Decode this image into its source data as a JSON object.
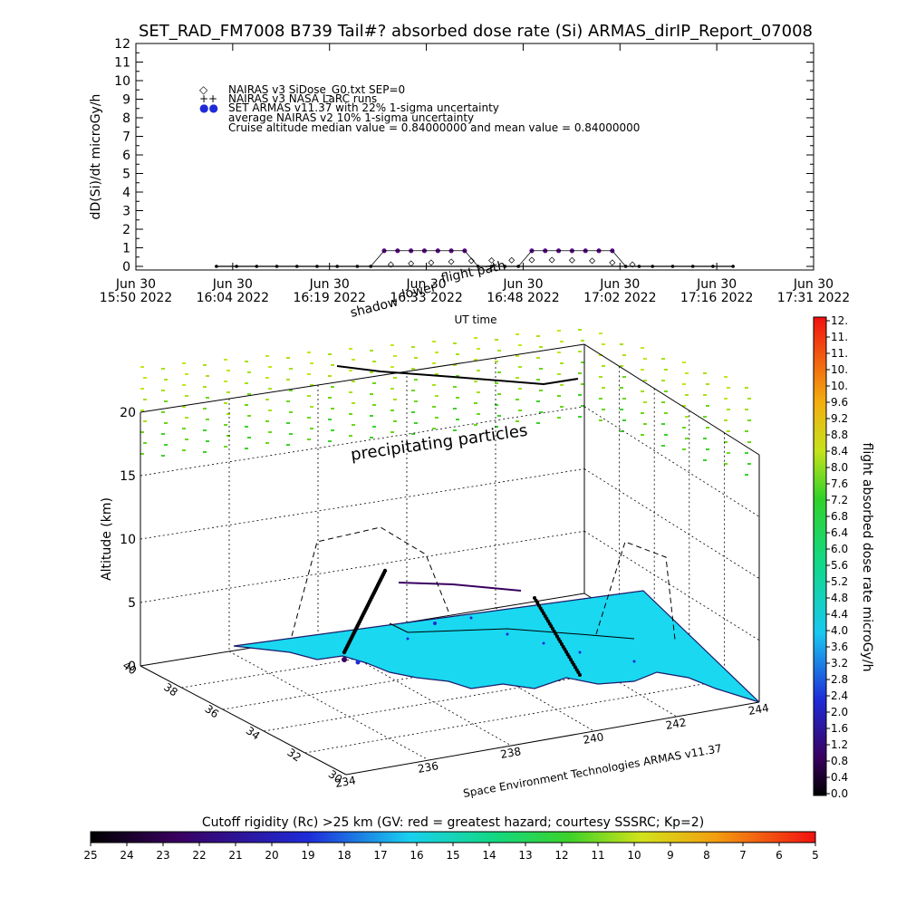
{
  "top_chart": {
    "title": "SET_RAD_FM7008  B739 Tail#? absorbed dose rate (Si) ARMAS_dirIP_Report_07008",
    "ylabel": "dD(Si)/dt microGy/h",
    "xlabel": "UT time",
    "y_ticks": [
      "0",
      "1",
      "2",
      "3",
      "4",
      "5",
      "6",
      "7",
      "8",
      "9",
      "10",
      "11",
      "12"
    ],
    "x_ticks": [
      {
        "line1": "Jun 30",
        "line2": "15:50 2022"
      },
      {
        "line1": "Jun 30",
        "line2": "16:04 2022"
      },
      {
        "line1": "Jun 30",
        "line2": "16:19 2022"
      },
      {
        "line1": "Jun 30",
        "line2": "16:33 2022"
      },
      {
        "line1": "Jun 30",
        "line2": "16:48 2022"
      },
      {
        "line1": "Jun 30",
        "line2": "17:02 2022"
      },
      {
        "line1": "Jun 30",
        "line2": "17:16 2022"
      },
      {
        "line1": "Jun 30",
        "line2": "17:31 2022"
      }
    ],
    "legend": [
      {
        "symbol": "◇",
        "text": "NAIRAS v3 SiDose_G0.txt SEP=0"
      },
      {
        "symbol": "++",
        "text": "NAIRAS v3 NASA LaRC runs"
      },
      {
        "symbol": "●●",
        "text": "SET ARMAS v11.37 with 22% 1-sigma uncertainty"
      },
      {
        "symbol": "",
        "text": "average NAIRAS v2 10% 1-sigma uncertainty"
      },
      {
        "symbol": "",
        "text": "Cruise altitude median value = 0.84000000 and mean value = 0.84000000"
      }
    ],
    "overlay_lower": "lower",
    "overlay_flightpath": "flight path",
    "overlay_shadow": "shadow",
    "colors": {
      "armas": "#5a0a8a",
      "nairas": "#000000"
    }
  },
  "chart_data": [
    {
      "type": "scatter",
      "title": "SET_RAD_FM7008  B739 Tail#? absorbed dose rate (Si) ARMAS_dirIP_Report_07008",
      "xlabel": "UT time",
      "ylabel": "dD(Si)/dt microGy/h",
      "xlim": [
        "15:50",
        "17:31"
      ],
      "ylim": [
        0,
        12
      ],
      "series": [
        {
          "name": "SET ARMAS v11.37 with 22% 1-sigma uncertainty",
          "x": [
            "16:02",
            "16:05",
            "16:08",
            "16:11",
            "16:14",
            "16:17",
            "16:20",
            "16:23",
            "16:25",
            "16:27",
            "16:29",
            "16:31",
            "16:33",
            "16:35",
            "16:37",
            "16:39",
            "16:41",
            "16:43",
            "16:45",
            "16:47",
            "16:49",
            "16:51",
            "16:53",
            "16:55",
            "16:57",
            "16:59",
            "17:01",
            "17:03",
            "17:05",
            "17:07",
            "17:10",
            "17:13",
            "17:16",
            "17:19"
          ],
          "y": [
            0,
            0,
            0,
            0,
            0,
            0,
            0,
            0,
            0,
            0.84,
            0.84,
            0.84,
            0.84,
            0.84,
            0.84,
            0.84,
            0,
            0,
            0,
            0,
            0.84,
            0.84,
            0.84,
            0.84,
            0.84,
            0.84,
            0.84,
            0,
            0,
            0,
            0,
            0,
            0,
            0
          ]
        },
        {
          "name": "NAIRAS v3 SiDose_G0.txt SEP=0",
          "x": [
            "16:28",
            "16:31",
            "16:34",
            "16:37",
            "16:40",
            "16:43",
            "16:46",
            "16:49",
            "16:52",
            "16:55",
            "16:58",
            "17:01",
            "17:04"
          ],
          "y": [
            0.1,
            0.15,
            0.2,
            0.25,
            0.3,
            0.32,
            0.33,
            0.34,
            0.34,
            0.33,
            0.3,
            0.2,
            0.1
          ]
        }
      ],
      "annotations": [
        "Cruise altitude median value = 0.84000000 and mean value = 0.84000000"
      ]
    },
    {
      "type": "scatter",
      "title": "",
      "xlabel": "",
      "ylabel": "Altitude (km)",
      "zlim": [
        0,
        20
      ],
      "z_ticks": [
        "0",
        "5",
        "10",
        "15",
        "20"
      ],
      "lat_ticks": [
        "30",
        "32",
        "34",
        "36",
        "38",
        "40"
      ],
      "lon_ticks": [
        "234",
        "236",
        "238",
        "240",
        "242",
        "244"
      ],
      "colorbar": {
        "label": "flight absorbed dose rate microGy/h",
        "ticks": [
          "0.0",
          "0.4",
          "0.8",
          "1.2",
          "1.6",
          "2.0",
          "2.4",
          "2.8",
          "3.2",
          "3.6",
          "4.0",
          "4.4",
          "4.8",
          "5.2",
          "5.6",
          "6.0",
          "6.4",
          "6.8",
          "7.2",
          "7.6",
          "8.0",
          "8.4",
          "8.8",
          "9.2",
          "9.6",
          "10.",
          "10.",
          "11.",
          "11.",
          "12."
        ]
      },
      "annotations": [
        "precipitating particles",
        "Space Environment Technologies ARMAS v11.37"
      ]
    },
    {
      "type": "heatmap",
      "title": "Cutoff rigidity (Rc) >25 km (GV: red = greatest hazard; courtesy SSSRC; Kp=2)",
      "ticks": [
        "25",
        "24",
        "23",
        "22",
        "21",
        "20",
        "19",
        "18",
        "17",
        "16",
        "15",
        "14",
        "13",
        "12",
        "11",
        "10",
        "9",
        "8",
        "7",
        "6",
        "5"
      ]
    }
  ]
}
